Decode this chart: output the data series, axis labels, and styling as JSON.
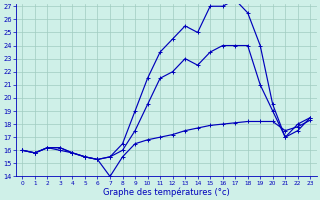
{
  "xlabel": "Graphe des températures (°c)",
  "bg_color": "#cff0e8",
  "grid_color": "#a0ccc0",
  "line_color": "#0000bb",
  "ylim": [
    14,
    27
  ],
  "xlim": [
    0,
    23
  ],
  "yticks": [
    14,
    15,
    16,
    17,
    18,
    19,
    20,
    21,
    22,
    23,
    24,
    25,
    26,
    27
  ],
  "xticks": [
    0,
    1,
    2,
    3,
    4,
    5,
    6,
    7,
    8,
    9,
    10,
    11,
    12,
    13,
    14,
    15,
    16,
    17,
    18,
    19,
    20,
    21,
    22,
    23
  ],
  "line1_y": [
    16.0,
    15.8,
    16.2,
    16.0,
    15.8,
    15.5,
    15.3,
    14.0,
    15.5,
    16.5,
    16.8,
    17.0,
    17.2,
    17.5,
    17.7,
    17.9,
    18.0,
    18.1,
    18.2,
    18.2,
    18.2,
    17.5,
    17.8,
    18.3
  ],
  "line2_y": [
    16.0,
    15.8,
    16.2,
    16.2,
    15.8,
    15.5,
    15.3,
    15.5,
    16.0,
    17.5,
    19.5,
    21.5,
    22.0,
    23.0,
    22.5,
    23.5,
    24.0,
    24.0,
    24.0,
    21.0,
    19.0,
    17.0,
    18.0,
    18.5
  ],
  "line3_y": [
    16.0,
    15.8,
    16.2,
    16.2,
    15.8,
    15.5,
    15.3,
    15.5,
    16.5,
    19.0,
    21.5,
    23.5,
    24.5,
    25.5,
    25.0,
    27.0,
    27.0,
    27.5,
    26.5,
    24.0,
    19.5,
    17.0,
    17.5,
    18.5
  ]
}
